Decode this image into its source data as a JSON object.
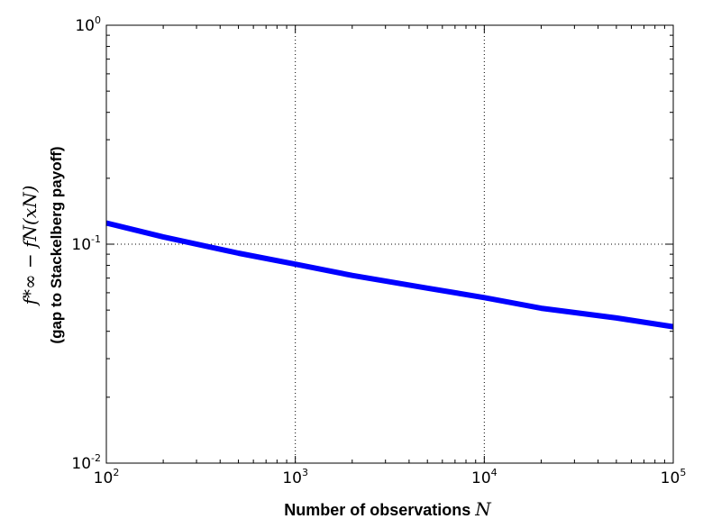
{
  "chart_data": {
    "type": "line",
    "title": "",
    "xlabel": "Number of observations",
    "xlabel_var": "N",
    "ylabel_math": "f*∞ − fN(xN)",
    "ylabel_sub": "(gap to Stackelberg payoff)",
    "xscale": "log",
    "yscale": "log",
    "xlim": [
      100,
      100000
    ],
    "ylim": [
      0.01,
      1
    ],
    "x_ticks": [
      {
        "value": 100,
        "base": "10",
        "exp": "2"
      },
      {
        "value": 1000,
        "base": "10",
        "exp": "3"
      },
      {
        "value": 10000,
        "base": "10",
        "exp": "4"
      },
      {
        "value": 100000,
        "base": "10",
        "exp": "5"
      }
    ],
    "y_ticks": [
      {
        "value": 0.01,
        "base": "10",
        "exp": "-2"
      },
      {
        "value": 0.1,
        "base": "10",
        "exp": "-1"
      },
      {
        "value": 1,
        "base": "10",
        "exp": "0"
      }
    ],
    "grid": true,
    "series": [
      {
        "color": "#0000ff",
        "x": [
          100,
          200,
          500,
          1000,
          2000,
          5000,
          10000,
          20000,
          50000,
          100000
        ],
        "y": [
          0.125,
          0.108,
          0.091,
          0.081,
          0.072,
          0.063,
          0.057,
          0.051,
          0.046,
          0.042
        ]
      }
    ]
  }
}
